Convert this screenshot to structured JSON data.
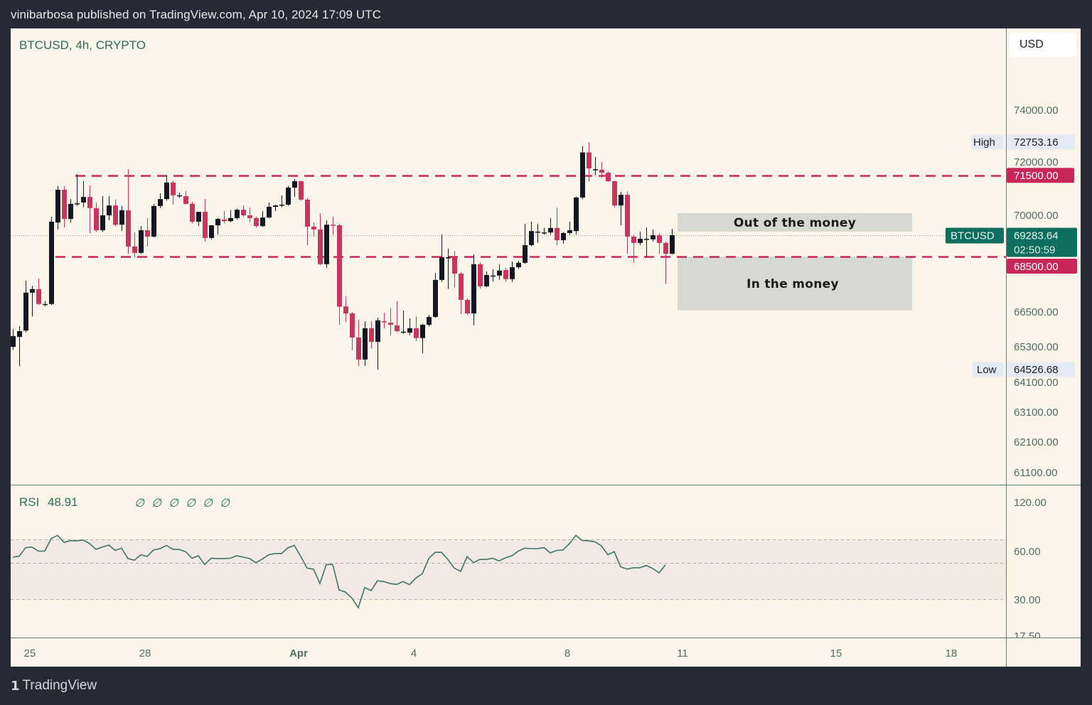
{
  "header": {
    "text": "vinibarbosa published on TradingView.com, Apr 10, 2024 17:09 UTC"
  },
  "legend": {
    "title": "BTCUSD, 4h, CRYPTO"
  },
  "price_scale": {
    "currency_button": "USD"
  },
  "footer": {
    "brand": "TradingView",
    "logo_glyph": "17"
  },
  "colors": {
    "up": "#131722",
    "down": "#c9355f",
    "level_line": "#c8275a",
    "last_price": "#0f6e5f",
    "rsi_line": "#3d7467",
    "background": "#fcf5ea",
    "frame": "#262a35"
  },
  "chart_data": {
    "type": "candlestick",
    "symbol": "BTCUSD",
    "interval": "4h",
    "exchange": "CRYPTO",
    "candles_format": [
      "open",
      "high",
      "low",
      "close"
    ],
    "candles": [
      [
        65300,
        65910,
        65200,
        65670
      ],
      [
        65640,
        66010,
        64650,
        65840
      ],
      [
        65860,
        67640,
        65800,
        67200
      ],
      [
        67200,
        67450,
        66350,
        67330
      ],
      [
        67330,
        67710,
        66750,
        66790
      ],
      [
        66790,
        66900,
        66700,
        66790
      ],
      [
        66790,
        69950,
        66750,
        69770
      ],
      [
        69740,
        71100,
        69490,
        70960
      ],
      [
        70960,
        71090,
        69560,
        69870
      ],
      [
        69870,
        70610,
        69740,
        70430
      ],
      [
        70450,
        71550,
        70350,
        70450
      ],
      [
        70480,
        71280,
        70300,
        70690
      ],
      [
        70690,
        71120,
        69360,
        70270
      ],
      [
        70270,
        70480,
        69400,
        69460
      ],
      [
        69460,
        70720,
        69400,
        70000
      ],
      [
        70000,
        70720,
        69820,
        70370
      ],
      [
        70370,
        70590,
        69600,
        69660
      ],
      [
        69660,
        70350,
        69430,
        70190
      ],
      [
        70190,
        71730,
        68610,
        68870
      ],
      [
        68870,
        69380,
        68460,
        68640
      ],
      [
        68640,
        69610,
        68600,
        69460
      ],
      [
        69460,
        69900,
        68870,
        69230
      ],
      [
        69230,
        70430,
        69200,
        70350
      ],
      [
        70350,
        70830,
        70270,
        70610
      ],
      [
        70610,
        71490,
        70550,
        71230
      ],
      [
        71230,
        71300,
        70400,
        70750
      ],
      [
        70750,
        70850,
        70650,
        70750
      ],
      [
        70720,
        70910,
        70400,
        70430
      ],
      [
        70430,
        70500,
        69700,
        69770
      ],
      [
        69770,
        70130,
        69610,
        70130
      ],
      [
        70130,
        70610,
        69050,
        69180
      ],
      [
        69180,
        69640,
        69130,
        69640
      ],
      [
        69640,
        69900,
        69310,
        69870
      ],
      [
        69850,
        70160,
        69700,
        69790
      ],
      [
        69790,
        70200,
        69750,
        69900
      ],
      [
        69900,
        70250,
        69850,
        70210
      ],
      [
        70210,
        70370,
        69950,
        70000
      ],
      [
        70000,
        70290,
        69750,
        69900
      ],
      [
        69900,
        69950,
        69550,
        69610
      ],
      [
        69610,
        70160,
        69580,
        69920
      ],
      [
        69920,
        70480,
        69900,
        70320
      ],
      [
        70320,
        70400,
        70160,
        70370
      ],
      [
        70400,
        70750,
        70300,
        70400
      ],
      [
        70400,
        71100,
        70350,
        71040
      ],
      [
        71040,
        71360,
        70690,
        71280
      ],
      [
        71280,
        71300,
        70550,
        70590
      ],
      [
        70590,
        70650,
        68920,
        69590
      ],
      [
        69590,
        69740,
        69230,
        69490
      ],
      [
        69490,
        70080,
        68200,
        68230
      ],
      [
        68230,
        69820,
        68100,
        69660
      ],
      [
        69660,
        69950,
        69300,
        69640
      ],
      [
        69640,
        69700,
        66060,
        66690
      ],
      [
        66700,
        67070,
        66160,
        66450
      ],
      [
        66450,
        66500,
        65180,
        65620
      ],
      [
        65620,
        66230,
        64650,
        64870
      ],
      [
        64870,
        66180,
        64650,
        65940
      ],
      [
        65940,
        66180,
        65250,
        65470
      ],
      [
        65470,
        66300,
        64526.68,
        66210
      ],
      [
        66180,
        66480,
        65940,
        66160
      ],
      [
        66130,
        66650,
        65700,
        66060
      ],
      [
        66040,
        66900,
        65800,
        65840
      ],
      [
        65820,
        66550,
        65750,
        65820
      ],
      [
        65790,
        66280,
        65700,
        65940
      ],
      [
        65940,
        66350,
        65500,
        65600
      ],
      [
        65600,
        66100,
        65080,
        66060
      ],
      [
        66060,
        66400,
        66000,
        66330
      ],
      [
        66330,
        67920,
        66300,
        67660
      ],
      [
        67660,
        69310,
        67590,
        68480
      ],
      [
        68480,
        68790,
        67330,
        68480
      ],
      [
        68510,
        68710,
        67380,
        67890
      ],
      [
        67890,
        67950,
        66430,
        66940
      ],
      [
        66940,
        67000,
        66400,
        66450
      ],
      [
        66450,
        68590,
        66040,
        68230
      ],
      [
        68230,
        68300,
        67350,
        67430
      ],
      [
        67430,
        67970,
        67400,
        67840
      ],
      [
        67820,
        68050,
        67600,
        67820
      ],
      [
        67820,
        68230,
        67660,
        68000
      ],
      [
        68020,
        68100,
        67600,
        67690
      ],
      [
        67690,
        68330,
        67590,
        68120
      ],
      [
        68120,
        68350,
        68050,
        68280
      ],
      [
        68280,
        69690,
        68250,
        68920
      ],
      [
        68920,
        69770,
        68880,
        69430
      ],
      [
        69410,
        69700,
        69000,
        69410
      ],
      [
        69380,
        69550,
        69300,
        69380
      ],
      [
        69380,
        69900,
        69300,
        69540
      ],
      [
        69540,
        70290,
        68920,
        69100
      ],
      [
        69100,
        69400,
        68970,
        69360
      ],
      [
        69360,
        69770,
        69300,
        69460
      ],
      [
        69430,
        70700,
        69310,
        70670
      ],
      [
        70670,
        72610,
        70600,
        72370
      ],
      [
        72370,
        72753.16,
        71280,
        71760
      ],
      [
        71730,
        72200,
        71500,
        71730
      ],
      [
        71710,
        72000,
        71400,
        71600
      ],
      [
        71600,
        71650,
        71250,
        71280
      ],
      [
        71280,
        71300,
        70300,
        70370
      ],
      [
        70370,
        70880,
        69640,
        70770
      ],
      [
        70770,
        70900,
        68610,
        69230
      ],
      [
        69230,
        69300,
        68280,
        69000
      ],
      [
        69000,
        69410,
        68920,
        69150
      ],
      [
        69150,
        69560,
        68480,
        69150
      ],
      [
        69130,
        69490,
        69050,
        69280
      ],
      [
        69280,
        69350,
        68610,
        69000
      ],
      [
        69000,
        69050,
        67510,
        68610
      ],
      [
        68610,
        69510,
        68580,
        69283.64
      ]
    ],
    "price_axis": {
      "tick_labels": [
        "74000.00",
        "72000.00",
        "70000.00",
        "66500.00",
        "65300.00",
        "64100.00",
        "63100.00",
        "62100.00",
        "61100.00"
      ],
      "tick_values": [
        74000,
        72000,
        70000,
        66500,
        65300,
        64100,
        63100,
        62100,
        61100
      ]
    },
    "x_tick_labels": [
      "25",
      "28",
      "Apr",
      "4",
      "8",
      "11",
      "15",
      "18"
    ],
    "horizontal_lines": [
      {
        "price": 71500,
        "label": "71500.00",
        "style": "dashed"
      },
      {
        "price": 68500,
        "label": "68500.00",
        "style": "dashed"
      }
    ],
    "last_price": {
      "symbol": "BTCUSD",
      "value": "69283.64",
      "price": 69283.64,
      "countdown": "02:50:59"
    },
    "high": {
      "label": "High",
      "value": "72753.16"
    },
    "low": {
      "label": "Low",
      "value": "64526.68"
    },
    "annotations": [
      {
        "label": "Out of the money",
        "price_top": 70080,
        "price_bottom": 69410
      },
      {
        "label": "In the money",
        "price_top": 68500,
        "price_bottom": 66560
      }
    ],
    "rsi": {
      "label": "RSI",
      "value": "48.91",
      "na_values": [
        "∅",
        "∅",
        "∅",
        "∅",
        "∅",
        "∅"
      ],
      "tick_labels": [
        "120.00",
        "60.00",
        "30.00",
        "17.50"
      ],
      "tick_values": [
        120,
        60,
        30,
        17.5
      ],
      "bands": [
        70,
        50,
        30
      ],
      "values": [
        54.7,
        55.6,
        62.7,
        63.3,
        59.7,
        59.7,
        71.2,
        75.4,
        67.4,
        68.8,
        68.8,
        69.4,
        66.4,
        61.3,
        63.3,
        65.0,
        60.3,
        62.3,
        53.6,
        52.2,
        56.7,
        55.3,
        60.7,
        61.9,
        64.7,
        61.3,
        61.1,
        59.3,
        53.8,
        55.9,
        49.1,
        53.9,
        53.6,
        53.6,
        53.8,
        55.9,
        54.7,
        53.6,
        50.2,
        53.2,
        56.7,
        57.7,
        57.7,
        62.7,
        64.7,
        55.3,
        47.1,
        46.5,
        38.6,
        49.1,
        49.1,
        35.0,
        33.9,
        30.5,
        27.0,
        36.4,
        34.7,
        40.1,
        39.7,
        38.6,
        38.1,
        39.7,
        38.0,
        41.6,
        44.0,
        53.6,
        58.7,
        58.7,
        52.8,
        47.1,
        45.3,
        55.3,
        50.2,
        52.8,
        52.8,
        53.8,
        51.6,
        54.2,
        55.9,
        59.7,
        62.3,
        61.9,
        61.9,
        62.9,
        58.3,
        60.3,
        60.7,
        66.4,
        75.4,
        69.0,
        68.8,
        67.8,
        64.4,
        56.7,
        59.3,
        47.8,
        46.6,
        47.3,
        47.3,
        48.6,
        46.9,
        44.5,
        48.91
      ]
    }
  }
}
